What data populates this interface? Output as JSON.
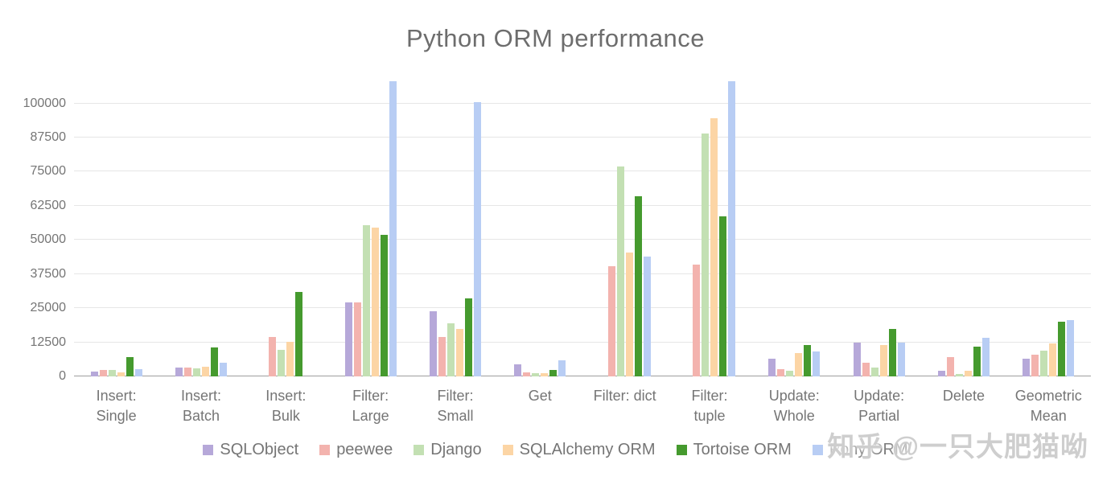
{
  "chart_data": {
    "type": "bar",
    "title": "Python ORM performance",
    "categories": [
      "Insert: Single",
      "Insert: Batch",
      "Insert: Bulk",
      "Filter: Large",
      "Filter: Small",
      "Get",
      "Filter: dict",
      "Filter: tuple",
      "Update: Whole",
      "Update: Partial",
      "Delete",
      "Geometric Mean"
    ],
    "category_label_lines": [
      [
        "Insert:",
        "Single"
      ],
      [
        "Insert:",
        "Batch"
      ],
      [
        "Insert:",
        "Bulk"
      ],
      [
        "Filter:",
        "Large"
      ],
      [
        "Filter:",
        "Small"
      ],
      [
        "Get"
      ],
      [
        "Filter: dict"
      ],
      [
        "Filter:",
        "tuple"
      ],
      [
        "Update:",
        "Whole"
      ],
      [
        "Update:",
        "Partial"
      ],
      [
        "Delete"
      ],
      [
        "Geometric",
        "Mean"
      ]
    ],
    "series": [
      {
        "name": "SQLObject",
        "color": "#b6a8d9",
        "values": [
          1800,
          3200,
          0,
          27000,
          24000,
          4400,
          0,
          0,
          6500,
          12500,
          2000,
          6500
        ]
      },
      {
        "name": "peewee",
        "color": "#f3b3ae",
        "values": [
          2400,
          3200,
          14500,
          27000,
          14500,
          1500,
          40500,
          41000,
          2700,
          5000,
          7000,
          8000
        ]
      },
      {
        "name": "Django",
        "color": "#c3e0b3",
        "values": [
          2400,
          2900,
          9700,
          55500,
          19500,
          1200,
          77000,
          89000,
          2100,
          3200,
          1000,
          9500
        ]
      },
      {
        "name": "SQLAlchemy ORM",
        "color": "#fcd5a5",
        "values": [
          1500,
          3500,
          12700,
          54500,
          17400,
          1200,
          45500,
          94500,
          8500,
          11500,
          2000,
          12000
        ]
      },
      {
        "name": "Tortoise ORM",
        "color": "#459a2e",
        "values": [
          7000,
          10500,
          31000,
          52000,
          28500,
          2400,
          66000,
          58500,
          11500,
          17500,
          11000,
          20000
        ]
      },
      {
        "name": "Pony ORM",
        "color": "#b8cdf4",
        "values": [
          2700,
          5000,
          0,
          108000,
          100500,
          6000,
          44000,
          108000,
          9000,
          12500,
          14000,
          20500
        ]
      }
    ],
    "ylim": [
      0,
      109000
    ],
    "yticks": [
      0,
      12500,
      25000,
      37500,
      50000,
      62500,
      75000,
      87500,
      100000
    ],
    "ylabel": "",
    "xlabel": "",
    "grid": true,
    "legend_position": "bottom"
  },
  "watermark": {
    "text": "知乎 @一只大肥猫呦"
  }
}
